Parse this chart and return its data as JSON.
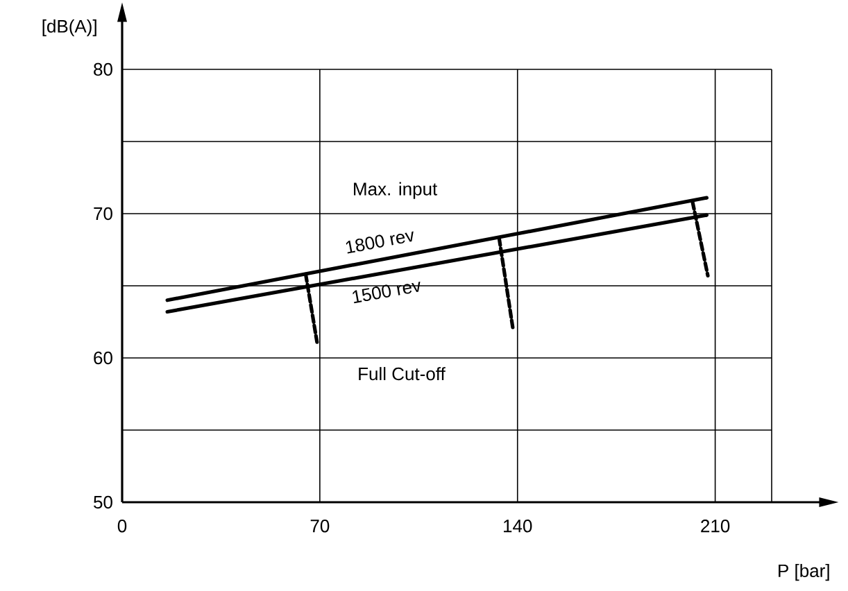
{
  "chart_data": {
    "type": "line",
    "xlabel": "P [bar]",
    "ylabel": "[dB(A)]",
    "xlim": [
      0,
      230
    ],
    "ylim": [
      50,
      80
    ],
    "xticks": [
      0,
      70,
      140,
      210
    ],
    "yticks": [
      50,
      {
        "value": 55,
        "label": null
      },
      60,
      {
        "value": 65,
        "label": null
      },
      70,
      {
        "value": 75,
        "label": null
      },
      80
    ],
    "grid": true,
    "marker": "none",
    "series": [
      {
        "name": "1800 rev",
        "color": "#000000",
        "line_style": "solid",
        "x": [
          16,
          207
        ],
        "values": [
          64.0,
          71.1
        ]
      },
      {
        "name": "1500 rev",
        "color": "#000000",
        "line_style": "solid",
        "x": [
          16,
          207
        ],
        "values": [
          63.2,
          69.9
        ]
      },
      {
        "color": "#000000",
        "line_style": "dashed",
        "x": [
          65,
          69
        ],
        "values": [
          65.8,
          61.1
        ]
      },
      {
        "color": "#000000",
        "line_style": "dashed",
        "x": [
          133.5,
          138.4
        ],
        "values": [
          68.3,
          62.0
        ]
      },
      {
        "color": "#000000",
        "line_style": "dashed",
        "x": [
          202,
          207.4
        ],
        "values": [
          70.8,
          65.7
        ]
      }
    ],
    "annotations": [
      "Max. input",
      "Full Cut-off"
    ]
  }
}
